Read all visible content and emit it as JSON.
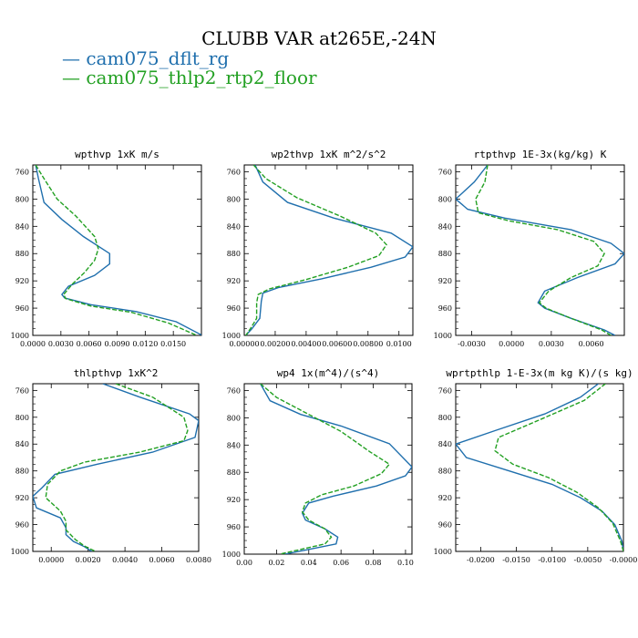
{
  "title": "CLUBB VAR at265E,-24N",
  "colors": {
    "s0": "#1f6fad",
    "s1": "#22a022"
  },
  "legend": [
    {
      "label": "— cam075_dflt_rg",
      "color": "#1f6fad",
      "style": "solid"
    },
    {
      "label": "— cam075_thlp2_rtp2_floor",
      "color": "#22a022",
      "style": "dashed"
    }
  ],
  "chart_data": [
    {
      "type": "line",
      "title": "wpthvp  1xK m/s",
      "xlim": [
        0,
        0.018
      ],
      "ylim": [
        1000,
        750
      ],
      "xticks": [
        0,
        0.003,
        0.006,
        0.009,
        0.012,
        0.015
      ],
      "xtick_labels": [
        "0.0000",
        "0.0030",
        "0.0060",
        "0.0090",
        "0.0120",
        "0.0150"
      ],
      "yticks": [
        760,
        800,
        840,
        880,
        920,
        960,
        1000
      ],
      "series": [
        {
          "name": "cam075_dflt_rg",
          "x": [
            0.0003,
            0.0006,
            0.0012,
            0.0031,
            0.0054,
            0.0082,
            0.0082,
            0.0066,
            0.0038,
            0.0031,
            0.0034,
            0.0062,
            0.011,
            0.0153,
            0.0181
          ],
          "y": [
            750,
            770,
            805,
            830,
            855,
            880,
            895,
            912,
            928,
            940,
            945,
            955,
            965,
            980,
            1000
          ]
        },
        {
          "name": "cam075_thlp2_rtp2_floor",
          "x": [
            0.0003,
            0.0012,
            0.0026,
            0.0046,
            0.0066,
            0.007,
            0.0066,
            0.0055,
            0.0042,
            0.0033,
            0.0035,
            0.0062,
            0.0105,
            0.0145,
            0.0175
          ],
          "y": [
            750,
            770,
            800,
            825,
            855,
            873,
            890,
            908,
            925,
            940,
            946,
            957,
            966,
            982,
            1000
          ]
        }
      ]
    },
    {
      "type": "line",
      "title": "wp2thvp  1xK m^2/s^2",
      "xlim": [
        0,
        0.0109
      ],
      "ylim": [
        1000,
        750
      ],
      "xticks": [
        0,
        0.002,
        0.004,
        0.006,
        0.008,
        0.01
      ],
      "xtick_labels": [
        "0.00000",
        "0.00200",
        "0.00400",
        "0.00600",
        "0.00800",
        "0.0100"
      ],
      "yticks": [
        760,
        800,
        840,
        880,
        920,
        960,
        1000
      ],
      "series": [
        {
          "name": "cam075_dflt_rg",
          "x": [
            0.0007,
            0.0012,
            0.0028,
            0.0058,
            0.0095,
            0.0109,
            0.0104,
            0.0082,
            0.005,
            0.0022,
            0.0012,
            0.0011,
            0.001,
            0.0005,
            0.0001
          ],
          "y": [
            750,
            775,
            805,
            828,
            850,
            870,
            885,
            900,
            917,
            930,
            938,
            950,
            975,
            990,
            1000
          ]
        },
        {
          "name": "cam075_thlp2_rtp2_floor",
          "x": [
            0.0006,
            0.0014,
            0.0034,
            0.0062,
            0.0085,
            0.0092,
            0.0087,
            0.0067,
            0.004,
            0.0016,
            0.0009,
            0.0008,
            0.0008,
            0.0004,
            0.0001
          ],
          "y": [
            750,
            770,
            798,
            825,
            850,
            867,
            883,
            900,
            918,
            932,
            940,
            952,
            975,
            990,
            1000
          ]
        }
      ]
    },
    {
      "type": "line",
      "title": "rtpthvp  1E-3x(kg/kg) K",
      "xlim": [
        -0.0042,
        0.0085
      ],
      "ylim": [
        1000,
        750
      ],
      "xticks": [
        -0.003,
        0,
        0.003,
        0.006
      ],
      "xtick_labels": [
        "-0.0030",
        "0.0000",
        "0.0030",
        "0.0060"
      ],
      "yticks": [
        760,
        800,
        840,
        880,
        920,
        960,
        1000
      ],
      "series": [
        {
          "name": "cam075_dflt_rg",
          "x": [
            -0.0018,
            -0.0028,
            -0.0042,
            -0.0033,
            -0.0005,
            0.0045,
            0.0075,
            0.0085,
            0.0078,
            0.005,
            0.0025,
            0.002,
            0.0025,
            0.0045,
            0.007,
            0.0078
          ],
          "y": [
            750,
            775,
            800,
            815,
            828,
            845,
            865,
            880,
            895,
            915,
            935,
            952,
            960,
            975,
            992,
            1000
          ]
        },
        {
          "name": "cam075_thlp2_rtp2_floor",
          "x": [
            -0.0018,
            -0.002,
            -0.0027,
            -0.0025,
            -0.0002,
            0.0035,
            0.0062,
            0.007,
            0.0065,
            0.0045,
            0.0028,
            0.0021,
            0.0026,
            0.0045,
            0.0068,
            0.0075
          ],
          "y": [
            750,
            775,
            800,
            820,
            832,
            845,
            862,
            880,
            898,
            915,
            935,
            952,
            960,
            975,
            992,
            1000
          ]
        }
      ]
    },
    {
      "type": "line",
      "title": "thlpthvp  1xK^2",
      "xlim": [
        -0.001,
        0.008
      ],
      "ylim": [
        1000,
        750
      ],
      "xticks": [
        0,
        0.002,
        0.004,
        0.006,
        0.008
      ],
      "xtick_labels": [
        "0.0000",
        "0.0020",
        "0.0040",
        "0.0060",
        "0.0080"
      ],
      "yticks": [
        760,
        800,
        840,
        880,
        920,
        960,
        1000
      ],
      "series": [
        {
          "name": "cam075_dflt_rg",
          "x": [
            0.0028,
            0.0048,
            0.0075,
            0.008,
            0.0078,
            0.0055,
            0.0025,
            0.0002,
            -0.0005,
            -0.001,
            -0.0008,
            0.0005,
            0.0008,
            0.0008,
            0.0012,
            0.0018,
            0.0022
          ],
          "y": [
            750,
            770,
            795,
            805,
            830,
            852,
            870,
            885,
            905,
            918,
            935,
            950,
            965,
            975,
            985,
            993,
            1000
          ]
        },
        {
          "name": "cam075_thlp2_rtp2_floor",
          "x": [
            0.0035,
            0.0055,
            0.0072,
            0.0074,
            0.0072,
            0.0048,
            0.0018,
            0.0005,
            -0.0002,
            -0.0003,
            0.0005,
            0.0008,
            0.0008,
            0.0013,
            0.0018,
            0.0024
          ],
          "y": [
            750,
            770,
            800,
            820,
            835,
            852,
            867,
            880,
            900,
            920,
            940,
            955,
            968,
            982,
            992,
            1000
          ]
        }
      ]
    },
    {
      "type": "line",
      "title": "wp4  1x(m^4)/(s^4)",
      "xlim": [
        0,
        0.104
      ],
      "ylim": [
        1000,
        750
      ],
      "xticks": [
        0,
        0.02,
        0.04,
        0.06,
        0.08,
        0.1
      ],
      "xtick_labels": [
        "0.00",
        "0.02",
        "0.04",
        "0.06",
        "0.08",
        "0.10"
      ],
      "yticks": [
        760,
        800,
        840,
        880,
        920,
        960,
        1000
      ],
      "series": [
        {
          "name": "cam075_dflt_rg",
          "x": [
            0.01,
            0.016,
            0.035,
            0.06,
            0.09,
            0.104,
            0.1,
            0.082,
            0.055,
            0.04,
            0.036,
            0.038,
            0.05,
            0.058,
            0.057,
            0.04,
            0.025
          ],
          "y": [
            750,
            775,
            795,
            812,
            838,
            872,
            885,
            900,
            915,
            925,
            940,
            950,
            963,
            975,
            985,
            993,
            1000
          ]
        },
        {
          "name": "cam075_thlp2_rtp2_floor",
          "x": [
            0.01,
            0.02,
            0.04,
            0.06,
            0.078,
            0.09,
            0.085,
            0.068,
            0.048,
            0.038,
            0.036,
            0.04,
            0.05,
            0.054,
            0.05,
            0.035,
            0.022
          ],
          "y": [
            750,
            770,
            795,
            820,
            850,
            868,
            882,
            900,
            913,
            925,
            938,
            950,
            963,
            975,
            985,
            993,
            1000
          ]
        }
      ]
    },
    {
      "type": "line",
      "title": "wprtpthlp  1-E-3x(m kg K)/(s kg)",
      "xlim": [
        -0.0235,
        0
      ],
      "ylim": [
        1000,
        750
      ],
      "xticks": [
        -0.02,
        -0.015,
        -0.01,
        -0.005,
        0
      ],
      "xtick_labels": [
        "-0.0200",
        "-0.0150",
        "-0.0100",
        "-0.0050",
        "-0.0000"
      ],
      "yticks": [
        760,
        800,
        840,
        880,
        920,
        960,
        1000
      ],
      "series": [
        {
          "name": "cam075_dflt_rg",
          "x": [
            -0.0035,
            -0.006,
            -0.011,
            -0.018,
            -0.0235,
            -0.022,
            -0.016,
            -0.01,
            -0.006,
            -0.003,
            -0.0012,
            -0.0002,
            0
          ],
          "y": [
            750,
            770,
            795,
            820,
            840,
            860,
            880,
            900,
            920,
            940,
            960,
            985,
            1000
          ]
        },
        {
          "name": "cam075_thlp2_rtp2_floor",
          "x": [
            -0.0025,
            -0.0055,
            -0.012,
            -0.0175,
            -0.018,
            -0.0155,
            -0.0105,
            -0.0065,
            -0.0035,
            -0.0015,
            -0.0004,
            0
          ],
          "y": [
            750,
            775,
            805,
            830,
            850,
            870,
            890,
            912,
            935,
            958,
            985,
            1000
          ]
        }
      ]
    }
  ]
}
